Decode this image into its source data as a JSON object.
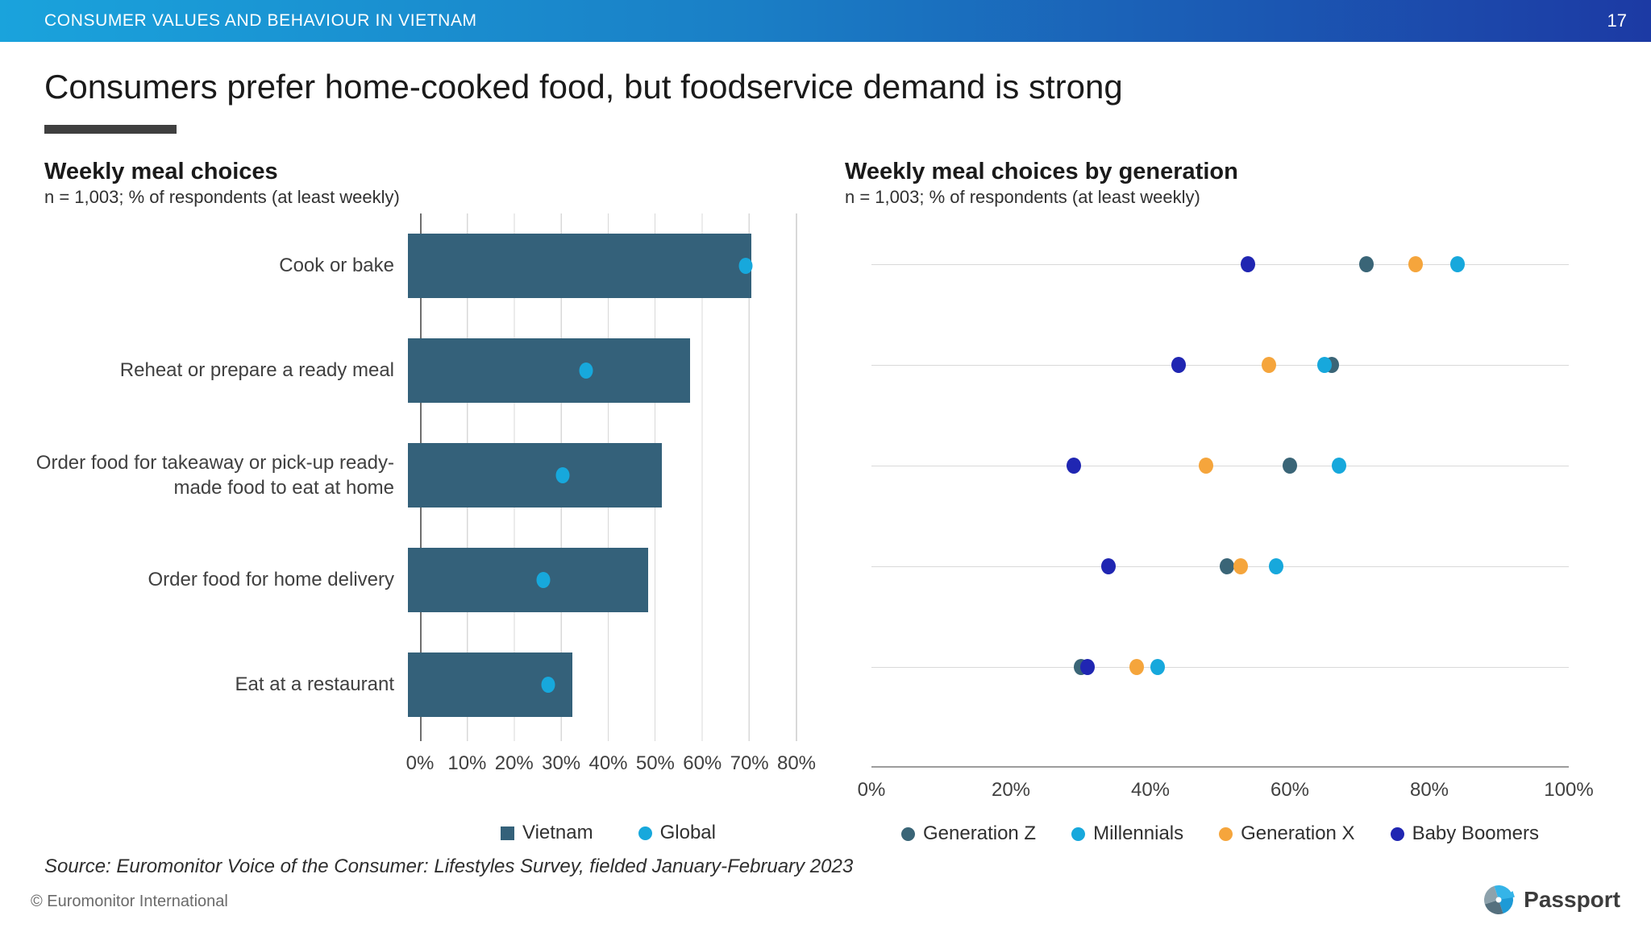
{
  "header": {
    "title": "CONSUMER VALUES AND BEHAVIOUR IN VIETNAM",
    "page_number": "17"
  },
  "slide": {
    "title": "Consumers prefer home-cooked food, but foodservice demand is strong"
  },
  "source_note": "Source: Euromonitor Voice of the Consumer: Lifestyles Survey, fielded January-February 2023",
  "footer": {
    "copyright": "© Euromonitor International",
    "logo_text": "Passport"
  },
  "colors": {
    "banner_gradient_start": "#1aa3dc",
    "banner_gradient_end": "#1c3aa4",
    "accent_bar": "#3f3f3f",
    "vietnam_teal": "#34617a",
    "global_cyan": "#17a8dc",
    "generation_z": "#3a6577",
    "millennials": "#17a8dc",
    "generation_x": "#f5a53c",
    "baby_boomers": "#2026b2",
    "gridline": "#d8d8d8"
  },
  "chart_data": [
    {
      "type": "bar",
      "title": "Weekly meal choices",
      "subtitle": "n = 1,003; % of respondents (at least weekly)",
      "categories": [
        "Cook or bake",
        "Reheat or prepare a ready meal",
        "Order food for takeaway or pick-up ready-made food to eat at home",
        "Order food for home delivery",
        "Eat at a restaurant"
      ],
      "series": [
        {
          "name": "Vietnam",
          "marker": "bar",
          "color": "#34617a",
          "values": [
            73,
            60,
            54,
            51,
            35
          ]
        },
        {
          "name": "Global",
          "marker": "point",
          "color": "#17a8dc",
          "values": [
            72,
            38,
            33,
            29,
            30
          ]
        }
      ],
      "xlim": [
        0,
        80
      ],
      "x_ticks": [
        "0%",
        "10%",
        "20%",
        "30%",
        "40%",
        "50%",
        "60%",
        "70%",
        "80%"
      ],
      "grid": "vertical",
      "legend": [
        "Vietnam",
        "Global"
      ],
      "legend_position": "bottom"
    },
    {
      "type": "scatter",
      "title": "Weekly meal choices by generation",
      "subtitle": "n = 1,003; % of respondents (at least weekly)",
      "categories": [
        "Cook or bake",
        "Reheat or prepare a ready meal",
        "Order food for takeaway or pick-up ready-made food to eat at home",
        "Order food for home delivery",
        "Eat at a restaurant"
      ],
      "series": [
        {
          "name": "Generation Z",
          "color": "#3a6577",
          "values": [
            71,
            66,
            60,
            51,
            30
          ]
        },
        {
          "name": "Generation X",
          "color": "#f5a53c",
          "values": [
            78,
            57,
            48,
            53,
            38
          ]
        },
        {
          "name": "Millennials",
          "color": "#17a8dc",
          "values": [
            84,
            65,
            67,
            58,
            41
          ]
        },
        {
          "name": "Baby Boomers",
          "color": "#2026b2",
          "values": [
            54,
            44,
            29,
            34,
            31
          ]
        }
      ],
      "xlim": [
        0,
        100
      ],
      "x_ticks": [
        "0%",
        "20%",
        "40%",
        "60%",
        "80%",
        "100%"
      ],
      "grid": "horizontal",
      "legend": [
        "Generation Z",
        "Millennials",
        "Generation X",
        "Baby Boomers"
      ],
      "legend_position": "bottom"
    }
  ]
}
